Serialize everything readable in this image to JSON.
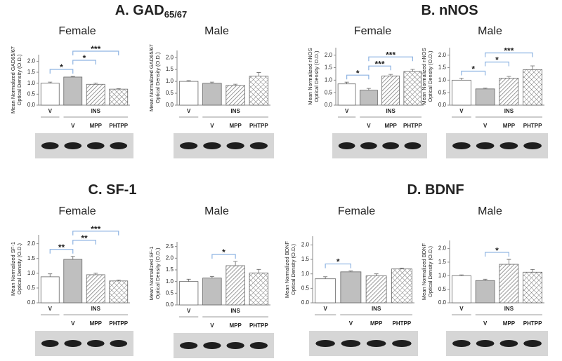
{
  "chart_data": [
    {
      "type": "bar",
      "title": "A.  GAD",
      "title_sub": "65/67",
      "subtitle": "Female",
      "ylabel": [
        "Mean Normalized GAD65/67",
        "Optical Density (O.D.)"
      ],
      "groups": [
        "V",
        "INS",
        null,
        null
      ],
      "categories": [
        null,
        "V",
        "MPP",
        "PHTPP"
      ],
      "values": [
        1.0,
        1.28,
        0.95,
        0.73
      ],
      "errors": [
        0.05,
        0.03,
        0.06,
        0.02
      ],
      "fills": [
        "white",
        "#bfbfbf",
        "hatch",
        "crosshatch"
      ],
      "ylim": [
        0,
        2.3
      ],
      "yticks": [
        {
          "value": 0,
          "label": "0.0"
        },
        0.5,
        {
          "value": 1,
          "label": "1.0"
        },
        1.5,
        {
          "value": 2,
          "label": "2.0"
        }
      ],
      "significance": [
        {
          "from": 0,
          "to": 1,
          "label": "*"
        },
        {
          "from": 1,
          "to": 2,
          "label": "*"
        },
        {
          "from": 1,
          "to": 3,
          "label": "***"
        }
      ]
    },
    {
      "type": "bar",
      "subtitle": "Male",
      "ylabel": [
        "Mean Normalized GAD65/67",
        "Optical Density (O.D.)"
      ],
      "groups": [
        "V",
        "INS",
        null,
        null
      ],
      "categories": [
        null,
        "V",
        "MPP",
        "PHTPP"
      ],
      "values": [
        1.0,
        0.92,
        0.83,
        1.22
      ],
      "errors": [
        0.03,
        0.05,
        0.05,
        0.15
      ],
      "fills": [
        "white",
        "#bfbfbf",
        "hatch",
        "crosshatch"
      ],
      "ylim": [
        0,
        2.3
      ],
      "yticks": [
        {
          "value": 0,
          "label": "0.0"
        },
        0.5,
        {
          "value": 1,
          "label": "1.0"
        },
        1.5,
        {
          "value": 2,
          "label": "2.0"
        }
      ],
      "significance": []
    },
    {
      "type": "bar",
      "title": "B.  nNOS",
      "subtitle": "Female",
      "ylabel": [
        "Mean Normalized nNOS",
        "Optical Density (O.D.)"
      ],
      "groups": [
        "V",
        "INS",
        null,
        null
      ],
      "categories": [
        null,
        "V",
        "MPP",
        "PHTPP"
      ],
      "values": [
        0.85,
        0.6,
        1.17,
        1.35
      ],
      "errors": [
        0.07,
        0.07,
        0.06,
        0.08
      ],
      "fills": [
        "white",
        "#bfbfbf",
        "hatch",
        "crosshatch"
      ],
      "ylim": [
        0,
        2.3
      ],
      "yticks": [
        {
          "value": 0,
          "label": "0.0"
        },
        0.5,
        {
          "value": 1,
          "label": "1.0"
        },
        1.5,
        {
          "value": 2,
          "label": "2.0"
        }
      ],
      "significance": [
        {
          "from": 0,
          "to": 1,
          "label": "*"
        },
        {
          "from": 1,
          "to": 2,
          "label": "***"
        },
        {
          "from": 1,
          "to": 3,
          "label": "***"
        }
      ]
    },
    {
      "type": "bar",
      "subtitle": "Male",
      "ylabel": [
        "Mean Normalized nNOS",
        "Optical Density (O.D.)"
      ],
      "groups": [
        "V",
        "INS",
        null,
        null
      ],
      "categories": [
        null,
        "V",
        "MPP",
        "PHTPP"
      ],
      "values": [
        1.0,
        0.65,
        1.08,
        1.42
      ],
      "errors": [
        0.08,
        0.03,
        0.07,
        0.15
      ],
      "fills": [
        "white",
        "#bfbfbf",
        "hatch",
        "crosshatch"
      ],
      "ylim": [
        0,
        2.3
      ],
      "yticks": [
        {
          "value": 0,
          "label": "0.0"
        },
        0.5,
        {
          "value": 1,
          "label": "1.0"
        },
        1.5,
        {
          "value": 2,
          "label": "2.0"
        }
      ],
      "significance": [
        {
          "from": 0,
          "to": 1,
          "label": "*"
        },
        {
          "from": 1,
          "to": 2,
          "label": "*"
        },
        {
          "from": 1,
          "to": 3,
          "label": "***"
        }
      ]
    },
    {
      "type": "bar",
      "title": "C.  SF-1",
      "subtitle": "Female",
      "ylabel": [
        "Mean Normalized SF-1",
        "Optical Density (O.D.)"
      ],
      "groups": [
        "V",
        "INS",
        null,
        null
      ],
      "categories": [
        null,
        "V",
        "MPP",
        "PHTPP"
      ],
      "values": [
        0.88,
        1.47,
        0.95,
        0.74
      ],
      "errors": [
        0.1,
        0.1,
        0.05,
        0.03
      ],
      "fills": [
        "white",
        "#bfbfbf",
        "hatch",
        "crosshatch"
      ],
      "ylim": [
        0,
        2.3
      ],
      "yticks": [
        {
          "value": 0,
          "label": "0.0"
        },
        0.5,
        {
          "value": 1,
          "label": "1.0"
        },
        1.5,
        {
          "value": 2,
          "label": "2.0"
        }
      ],
      "significance": [
        {
          "from": 0,
          "to": 1,
          "label": "**"
        },
        {
          "from": 1,
          "to": 2,
          "label": "**"
        },
        {
          "from": 1,
          "to": 3,
          "label": "***"
        }
      ]
    },
    {
      "type": "bar",
      "subtitle": "Male",
      "ylabel": [
        "Mean Normalized SF-1",
        "Optical Density (O.D.)"
      ],
      "groups": [
        "V",
        "INS",
        null,
        null
      ],
      "categories": [
        null,
        "V",
        "MPP",
        "PHTPP"
      ],
      "values": [
        1.0,
        1.15,
        1.68,
        1.37
      ],
      "errors": [
        0.1,
        0.07,
        0.18,
        0.15
      ],
      "fills": [
        "white",
        "#bfbfbf",
        "hatch",
        "crosshatch"
      ],
      "ylim": [
        0,
        2.7
      ],
      "yticks": [
        {
          "value": 0,
          "label": "0.0"
        },
        0.5,
        {
          "value": 1,
          "label": "1.0"
        },
        1.5,
        {
          "value": 2,
          "label": "2.0"
        },
        2.5
      ],
      "significance": [
        {
          "from": 1,
          "to": 2,
          "label": "*"
        }
      ]
    },
    {
      "type": "bar",
      "title": "D.  BDNF",
      "subtitle": "Female",
      "ylabel": [
        "Mean Normalized BDNF",
        "Optical Density (O.D.)"
      ],
      "groups": [
        "V",
        "INS",
        null,
        null
      ],
      "categories": [
        null,
        "V",
        "MPP",
        "PHTPP"
      ],
      "values": [
        0.83,
        1.07,
        0.93,
        1.17
      ],
      "errors": [
        0.07,
        0.03,
        0.07,
        0.03
      ],
      "fills": [
        "white",
        "#bfbfbf",
        "hatch",
        "crosshatch"
      ],
      "ylim": [
        0,
        2.3
      ],
      "yticks": [
        {
          "value": 0,
          "label": "0.0"
        },
        0.5,
        {
          "value": 1,
          "label": "1.0"
        },
        1.5,
        {
          "value": 2,
          "label": "2.0"
        }
      ],
      "significance": [
        {
          "from": 0,
          "to": 1,
          "label": "*"
        }
      ]
    },
    {
      "type": "bar",
      "subtitle": "Male",
      "ylabel": [
        "Mean Normalized BDNF",
        "Optical Density (O.D.)"
      ],
      "groups": [
        "V",
        "INS",
        null,
        null
      ],
      "categories": [
        null,
        "V",
        "MPP",
        "PHTPP"
      ],
      "values": [
        1.0,
        0.82,
        1.42,
        1.13
      ],
      "errors": [
        0.03,
        0.05,
        0.18,
        0.1
      ],
      "fills": [
        "white",
        "#bfbfbf",
        "hatch",
        "crosshatch"
      ],
      "ylim": [
        0,
        2.3
      ],
      "yticks": [
        {
          "value": 0,
          "label": "0.0"
        },
        0.5,
        {
          "value": 1,
          "label": "1.0"
        },
        1.5,
        {
          "value": 2,
          "label": "2.0"
        }
      ],
      "significance": [
        {
          "from": 1,
          "to": 2,
          "label": "*"
        }
      ]
    }
  ]
}
